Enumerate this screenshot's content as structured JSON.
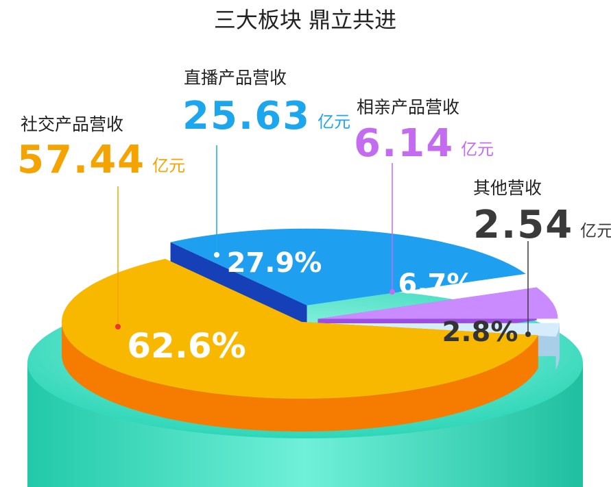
{
  "chart_data": {
    "type": "pie",
    "title": "三大板块 鼎立共进",
    "categories": [
      "社交产品营收",
      "直播产品营收",
      "相亲产品营收",
      "其他营收"
    ],
    "values": [
      62.6,
      27.9,
      6.7,
      2.8
    ],
    "value_labels": [
      "62.6%",
      "27.9%",
      "6.7%",
      "2.8%"
    ],
    "amounts": [
      57.44,
      25.63,
      6.14,
      2.54
    ],
    "amount_unit": "亿元",
    "colors": [
      "#f9b800",
      "#1f9ff0",
      "#c98bff",
      "#d4ecfb"
    ]
  }
}
